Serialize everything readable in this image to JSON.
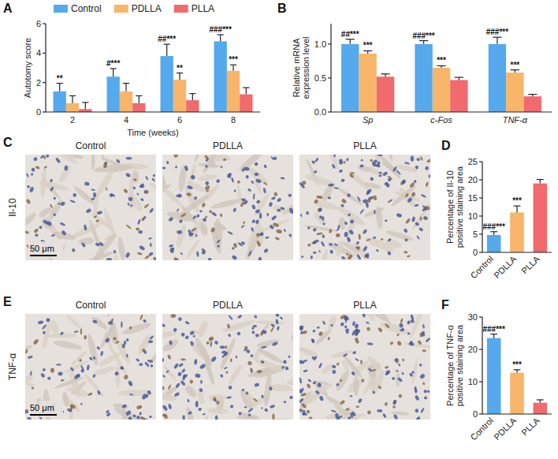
{
  "chart_data": [
    {
      "type": "bar",
      "panel": "A",
      "x_label": "Time (weeks)",
      "y_label": "Autotomy score",
      "categories": [
        "2",
        "4",
        "6",
        "8"
      ],
      "ylim": [
        0,
        6
      ],
      "yticks": [
        0,
        2,
        4,
        6
      ],
      "legend": "top",
      "series": [
        {
          "name": "Control",
          "color": "#55a9ec",
          "values": [
            1.4,
            2.4,
            3.8,
            4.8
          ],
          "errors": [
            0.55,
            0.55,
            0.8,
            0.45
          ],
          "annotations": [
            "**",
            "#***",
            "##***",
            "###***"
          ]
        },
        {
          "name": "PDLLA",
          "color": "#f7b56a",
          "values": [
            0.6,
            1.4,
            2.2,
            2.8
          ],
          "errors": [
            0.5,
            0.55,
            0.45,
            0.4
          ],
          "annotations": [
            null,
            null,
            "**",
            "***"
          ]
        },
        {
          "name": "PLLA",
          "color": "#f06a6e",
          "values": [
            0.2,
            0.6,
            0.8,
            1.2
          ],
          "errors": [
            0.45,
            0.5,
            0.45,
            0.45
          ]
        }
      ]
    },
    {
      "type": "bar",
      "panel": "B",
      "y_label": "Relative mRNA expression level",
      "categories": [
        "Sp",
        "c-Fos",
        "TNF-α"
      ],
      "ylim": [
        0,
        1.3
      ],
      "yticks": [
        {
          "value": 0,
          "label": "0.0"
        },
        {
          "value": 0.5,
          "label": "0.5"
        },
        {
          "value": 1,
          "label": "1.0"
        }
      ],
      "series": [
        {
          "color": "#55a9ec",
          "values": [
            1.0,
            1.0,
            1.0
          ],
          "errors": [
            0.07,
            0.05,
            0.1
          ],
          "annotations": [
            "##***",
            "###***",
            "###***"
          ]
        },
        {
          "color": "#f7b56a",
          "values": [
            0.86,
            0.65,
            0.58
          ],
          "errors": [
            0.04,
            0.03,
            0.04
          ],
          "annotations": [
            "***",
            "***",
            "***"
          ]
        },
        {
          "color": "#f06a6e",
          "values": [
            0.52,
            0.47,
            0.23
          ],
          "errors": [
            0.04,
            0.04,
            0.03
          ]
        }
      ]
    },
    {
      "type": "image_grid",
      "panel": "C",
      "row_label": "Il-10",
      "columns": [
        "Control",
        "PDLLA",
        "PLLA"
      ],
      "scale_bar": "50 μm"
    },
    {
      "type": "bar",
      "panel": "D",
      "y_label": "Percentage of Il-10 positive staining area",
      "categories": [
        "Control",
        "PDLLA",
        "PLLA"
      ],
      "values": [
        4.8,
        11.0,
        19.0
      ],
      "errors": [
        0.9,
        1.8,
        1.1
      ],
      "annotations": [
        "###***",
        "***",
        null
      ],
      "colors": [
        "#55a9ec",
        "#f7b56a",
        "#f06a6e"
      ],
      "ylim": [
        0,
        25
      ],
      "yticks": [
        0,
        5,
        10,
        15,
        20,
        25
      ]
    },
    {
      "type": "image_grid",
      "panel": "E",
      "row_label": "TNF-α",
      "columns": [
        "Control",
        "PDLLA",
        "PLLA"
      ],
      "scale_bar": "50 μm"
    },
    {
      "type": "bar",
      "panel": "F",
      "y_label": "Percentage of TNF-α positive staining area",
      "categories": [
        "Control",
        "PDLLA",
        "PLLA"
      ],
      "values": [
        23.5,
        12.8,
        3.5
      ],
      "errors": [
        1.2,
        0.9,
        0.9
      ],
      "annotations": [
        "###***",
        "***",
        null
      ],
      "colors": [
        "#55a9ec",
        "#f7b56a",
        "#f06a6e"
      ],
      "ylim": [
        0,
        30
      ],
      "yticks": [
        0,
        10,
        20,
        30
      ]
    }
  ]
}
